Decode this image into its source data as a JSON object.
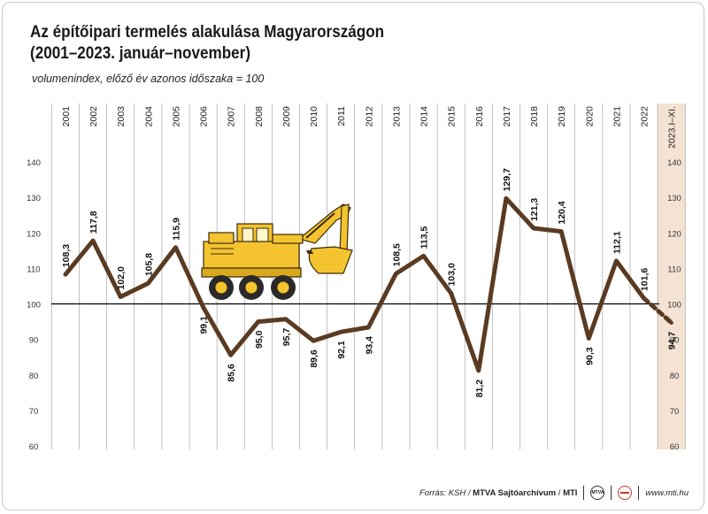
{
  "header": {
    "title_line1": "Az építőipari termelés alakulása Magyarországon",
    "title_line2": "(2001–2023. január–november)",
    "subtitle": "volumenindex, előző év azonos időszaka = 100"
  },
  "chart_data": {
    "type": "line",
    "categories": [
      "2001",
      "2002",
      "2003",
      "2004",
      "2005",
      "2006",
      "2007",
      "2008",
      "2009",
      "2010",
      "2011",
      "2012",
      "2013",
      "2014",
      "2015",
      "2016",
      "2017",
      "2018",
      "2019",
      "2020",
      "2021",
      "2022",
      "2023.I–XI."
    ],
    "values": [
      108.3,
      117.8,
      102.0,
      105.8,
      115.9,
      99.1,
      85.6,
      95.0,
      95.7,
      89.6,
      92.1,
      93.4,
      108.5,
      113.5,
      103.0,
      81.2,
      129.7,
      121.3,
      120.4,
      90.3,
      112.1,
      101.6,
      94.7
    ],
    "value_labels": [
      "108,3",
      "117,8",
      "102,0",
      "105,8",
      "115,9",
      "99,1",
      "85,6",
      "95,0",
      "95,7",
      "89,6",
      "92,1",
      "93,4",
      "108,5",
      "113,5",
      "103,0",
      "81,2",
      "129,7",
      "121,3",
      "120,4",
      "90,3",
      "112,1",
      "101,6",
      "94,7"
    ],
    "label_position": [
      "above",
      "above",
      "above",
      "above",
      "above",
      "below",
      "below",
      "below",
      "below",
      "below",
      "below",
      "below",
      "above",
      "above",
      "above",
      "below",
      "above",
      "above",
      "above",
      "below",
      "above",
      "above",
      "below"
    ],
    "ylim": [
      60,
      140
    ],
    "yticks": [
      60,
      70,
      80,
      90,
      100,
      110,
      120,
      130,
      140
    ],
    "reference_line": 100,
    "last_point_dashed": true,
    "highlight_category": "2023.I–XI.",
    "grid": "vertical",
    "colors": {
      "line": "#5a3b22",
      "highlight_band": "#f4e3d3",
      "grid": "#999999",
      "reference": "#000000"
    }
  },
  "footer": {
    "source_prefix": "Forrás: KSH /",
    "agency": "MTVA Sajtóarchívum",
    "slash": "/",
    "brand": "MTI",
    "logo_text": "MTVA",
    "website": "www.mti.hu"
  },
  "icons": {
    "illustration": "excavator-icon"
  }
}
